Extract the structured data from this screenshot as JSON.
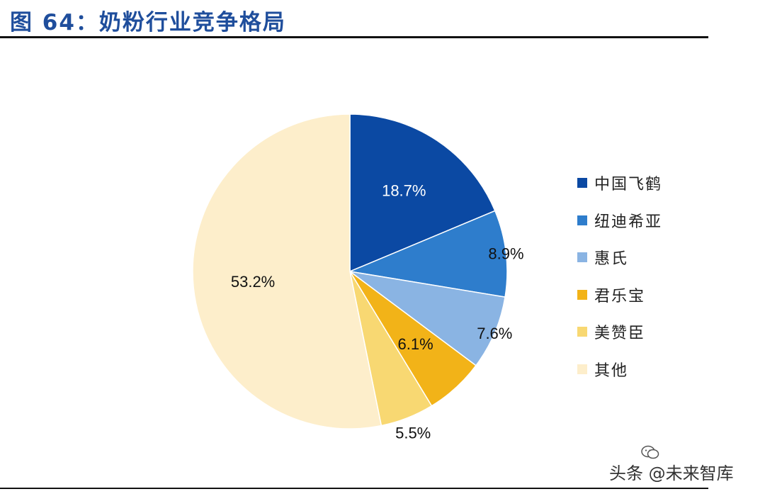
{
  "figure": {
    "title": "图 64：奶粉行业竞争格局"
  },
  "chart_data": {
    "type": "pie",
    "categories": [
      "中国飞鹤",
      "纽迪希亚",
      "惠氏",
      "君乐宝",
      "美赞臣",
      "其他"
    ],
    "values": [
      18.7,
      8.9,
      7.6,
      6.1,
      5.5,
      53.2
    ],
    "data_labels": [
      "18.7%",
      "8.9%",
      "7.6%",
      "6.1%",
      "5.5%",
      "53.2%"
    ],
    "colors": [
      "#0b49a3",
      "#2e7dcc",
      "#8ab4e3",
      "#f2b318",
      "#f8d872",
      "#fdeecb"
    ],
    "label_colors": [
      "#ffffff",
      "#111111",
      "#111111",
      "#111111",
      "#111111",
      "#111111"
    ],
    "start_direction": "12 o'clock, clockwise",
    "legend": {
      "placement": "right",
      "entries": [
        "中国飞鹤",
        "纽迪希亚",
        "惠氏",
        "君乐宝",
        "美赞臣",
        "其他"
      ]
    }
  },
  "watermark": {
    "text": "头条 @未来智库",
    "icon": "wechat-logo-icon"
  }
}
